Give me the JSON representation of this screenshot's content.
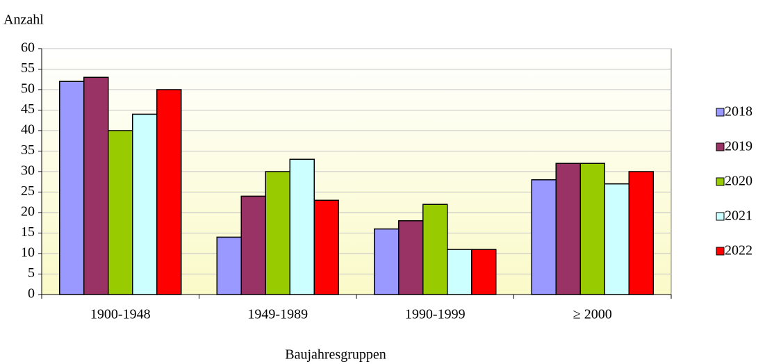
{
  "chart_data": {
    "type": "bar",
    "y_label": "Anzahl",
    "x_label": "Baujahresgruppen",
    "categories": [
      "1900-1948",
      "1949-1989",
      "1990-1999",
      "≥ 2000"
    ],
    "series": [
      {
        "name": "2018",
        "color": "#9999ff",
        "values": [
          52,
          14,
          16,
          28
        ]
      },
      {
        "name": "2019",
        "color": "#993366",
        "values": [
          53,
          24,
          18,
          32
        ]
      },
      {
        "name": "2020",
        "color": "#99cc00",
        "values": [
          40,
          30,
          22,
          32
        ]
      },
      {
        "name": "2021",
        "color": "#ccffff",
        "values": [
          44,
          33,
          11,
          27
        ]
      },
      {
        "name": "2022",
        "color": "#ff0000",
        "values": [
          50,
          23,
          11,
          30
        ]
      }
    ],
    "ylim": [
      0,
      60
    ],
    "yticks": [
      0,
      5,
      10,
      15,
      20,
      25,
      30,
      35,
      40,
      45,
      50,
      55,
      60
    ],
    "grid": true,
    "legend": "right"
  }
}
